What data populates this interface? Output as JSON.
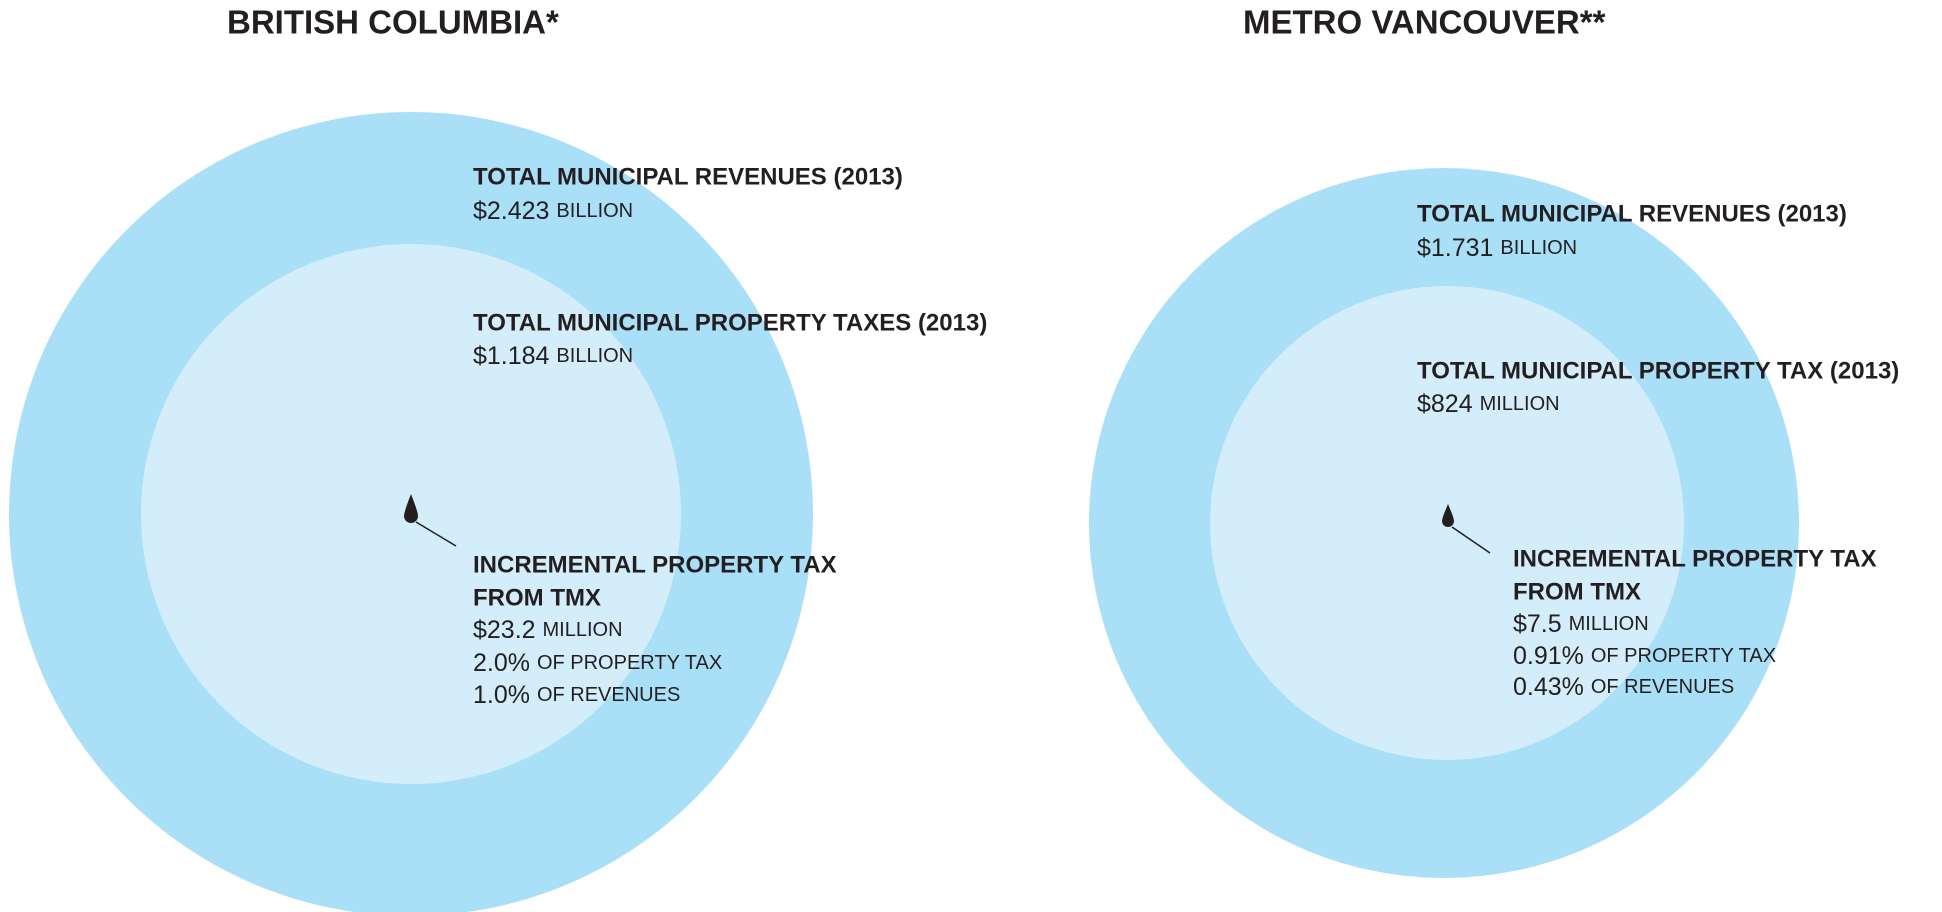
{
  "panels": [
    {
      "title": "BRITISH COLUMBIA*",
      "revenues": {
        "label": "TOTAL MUNICIPAL REVENUES (2013)",
        "amount": "$2.423",
        "unit": "BILLION"
      },
      "property_tax": {
        "label": "TOTAL MUNICIPAL PROPERTY TAXES (2013)",
        "amount": "$1.184",
        "unit": "BILLION"
      },
      "incremental": {
        "label_lines": [
          "INCREMENTAL PROPERTY TAX",
          "FROM TMX"
        ],
        "amount": "$23.2",
        "unit": "MILLION",
        "shares": [
          {
            "value": "2.0%",
            "text": "OF PROPERTY TAX"
          },
          {
            "value": "1.0%",
            "text": "OF REVENUES"
          }
        ]
      }
    },
    {
      "title": "METRO VANCOUVER**",
      "revenues": {
        "label": "TOTAL MUNICIPAL REVENUES (2013)",
        "amount": "$1.731",
        "unit": "BILLION"
      },
      "property_tax": {
        "label": "TOTAL MUNICIPAL PROPERTY TAX (2013)",
        "amount": "$824",
        "unit": "MILLION"
      },
      "incremental": {
        "label_lines": [
          "INCREMENTAL PROPERTY TAX",
          "FROM TMX"
        ],
        "amount": "$7.5",
        "unit": "MILLION",
        "shares": [
          {
            "value": "0.91%",
            "text": "OF PROPERTY TAX"
          },
          {
            "value": "0.43%",
            "text": "OF REVENUES"
          }
        ]
      }
    }
  ]
}
